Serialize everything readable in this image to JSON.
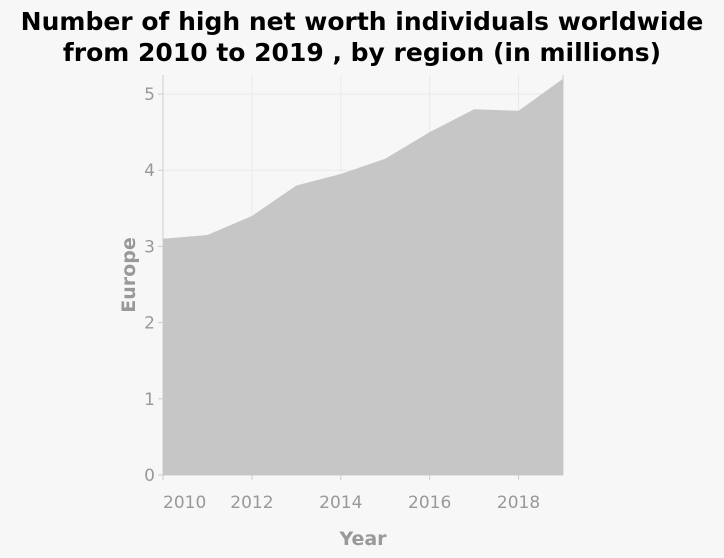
{
  "chart_data": {
    "type": "area",
    "title": "Number of high net worth individuals worldwide\nfrom 2010 to 2019 , by region (in millions)",
    "xlabel": "Year",
    "ylabel": "Europe",
    "x": [
      2010,
      2011,
      2012,
      2013,
      2014,
      2015,
      2016,
      2017,
      2018,
      2019
    ],
    "series": [
      {
        "values": [
          3.1,
          3.15,
          3.4,
          3.8,
          3.95,
          4.15,
          4.5,
          4.8,
          4.78,
          5.2
        ]
      }
    ],
    "xlim": [
      2010,
      2019
    ],
    "ylim": [
      0,
      5.25
    ],
    "xticks": [
      2010,
      2012,
      2014,
      2016,
      2018
    ],
    "yticks": [
      0,
      1,
      2,
      3,
      4,
      5
    ],
    "grid": true,
    "colors": {
      "fill": "#c6c6c6",
      "grid": "#eaeaea",
      "axis": "#cccccc",
      "text": "#999999"
    }
  }
}
